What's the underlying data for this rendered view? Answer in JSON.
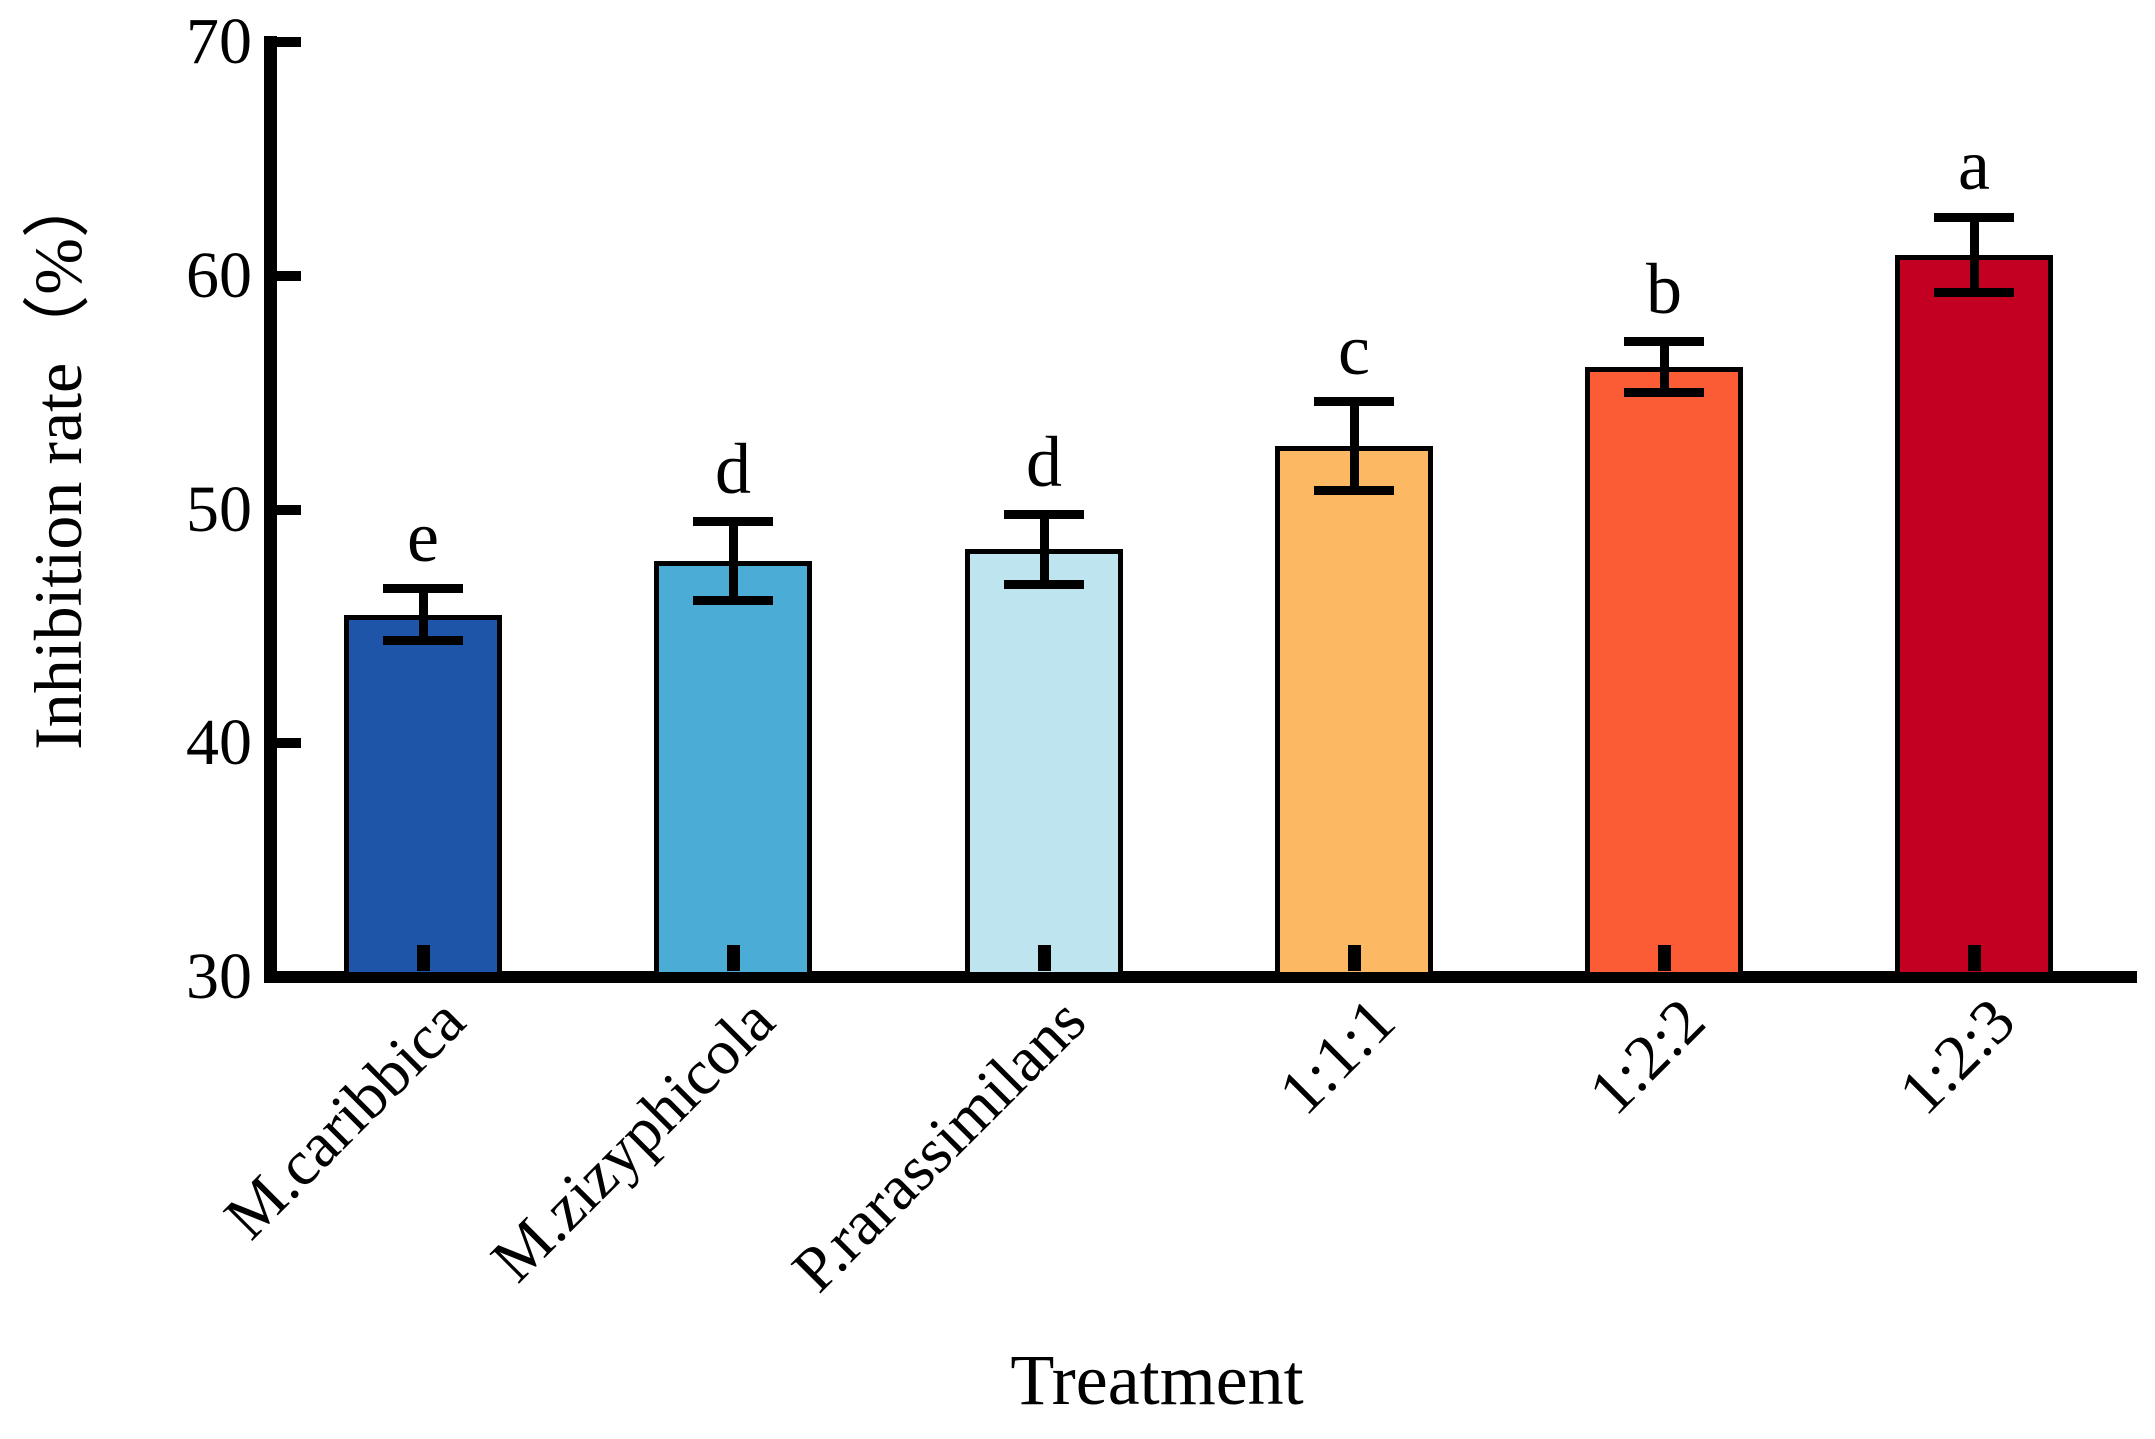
{
  "chart_data": {
    "type": "bar",
    "title": "",
    "xlabel": "Treatment",
    "ylabel": "Inhibition rate（%）",
    "ylim": [
      30,
      70
    ],
    "y_ticks": [
      30,
      40,
      50,
      60,
      70
    ],
    "categories": [
      "M.caribbica",
      "M.zizyphicola",
      "P.rarassimilans",
      "1:1:1",
      "1:2:2",
      "1:2:3"
    ],
    "values": [
      45.5,
      47.8,
      48.3,
      52.7,
      56.1,
      60.9
    ],
    "errors": [
      1.1,
      1.7,
      1.5,
      1.9,
      1.1,
      1.6
    ],
    "sig_letters": [
      "e",
      "d",
      "d",
      "c",
      "b",
      "a"
    ],
    "bar_colors": [
      "#1F55A8",
      "#4BACD6",
      "#BEE4EF",
      "#FDB863",
      "#FB5B35",
      "#C30021"
    ],
    "axis_color": "#000000",
    "grid": false,
    "legend": "none",
    "error_bar_style": "caps-above-and-below"
  }
}
